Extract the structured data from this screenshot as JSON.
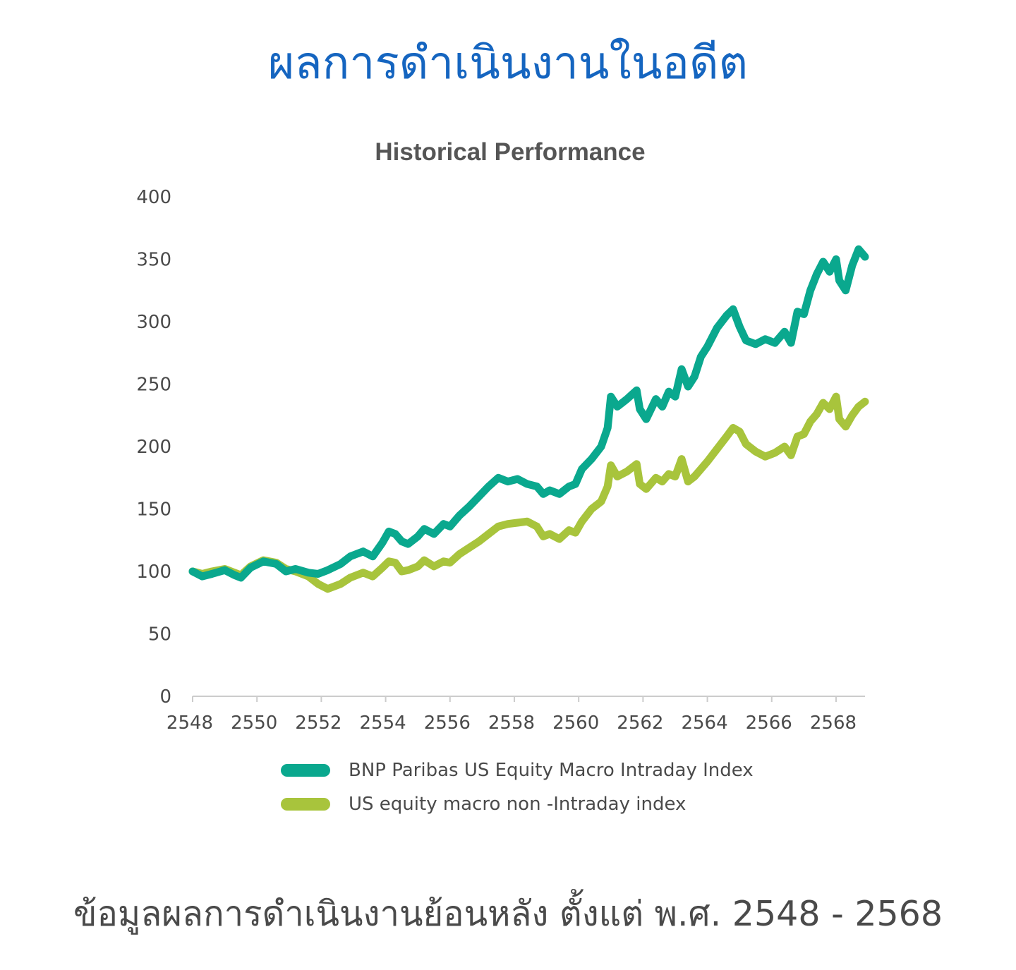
{
  "page": {
    "heading": "ผลการดำเนินงานในอดีต",
    "footer_note": "ข้อมูลผลการดำเนินงานย้อนหลัง ตั้งแต่ พ.ศ. 2548 - 2568"
  },
  "colors": {
    "heading": "#1565c0",
    "intraday_series": "#0aa88e",
    "non_intraday_series": "#a8c43c",
    "axis": "#cccccc",
    "text": "#4a4a4a"
  },
  "chart_data": {
    "type": "line",
    "title": "Historical Performance",
    "xlabel": "",
    "ylabel": "",
    "xlim": [
      2548,
      2568.9
    ],
    "ylim": [
      0,
      400
    ],
    "x_ticks": [
      "2548",
      "2550",
      "2552",
      "2554",
      "2556",
      "2558",
      "2560",
      "2562",
      "2564",
      "2566",
      "2568"
    ],
    "y_ticks": [
      "0",
      "50",
      "100",
      "150",
      "200",
      "250",
      "300",
      "350",
      "400"
    ],
    "grid": false,
    "legend_position": "bottom",
    "series": [
      {
        "name": "BNP Paribas US Equity Macro Intraday Index",
        "color": "#0aa88e",
        "x": [
          2548.0,
          2548.3,
          2548.6,
          2549.0,
          2549.3,
          2549.5,
          2549.8,
          2550.2,
          2550.6,
          2550.9,
          2551.2,
          2551.6,
          2551.9,
          2552.2,
          2552.6,
          2552.9,
          2553.3,
          2553.6,
          2553.9,
          2554.1,
          2554.3,
          2554.5,
          2554.7,
          2555.0,
          2555.2,
          2555.5,
          2555.8,
          2556.0,
          2556.3,
          2556.6,
          2556.9,
          2557.2,
          2557.5,
          2557.8,
          2558.1,
          2558.4,
          2558.7,
          2558.9,
          2559.1,
          2559.4,
          2559.7,
          2559.9,
          2560.1,
          2560.4,
          2560.7,
          2560.9,
          2561.0,
          2561.2,
          2561.5,
          2561.8,
          2561.9,
          2562.1,
          2562.4,
          2562.6,
          2562.8,
          2563.0,
          2563.2,
          2563.4,
          2563.6,
          2563.8,
          2564.0,
          2564.3,
          2564.6,
          2564.8,
          2565.0,
          2565.2,
          2565.5,
          2565.8,
          2566.1,
          2566.4,
          2566.6,
          2566.8,
          2567.0,
          2567.2,
          2567.4,
          2567.6,
          2567.8,
          2568.0,
          2568.1,
          2568.3,
          2568.5,
          2568.7,
          2568.9
        ],
        "values": [
          100,
          96,
          98,
          101,
          97,
          95,
          103,
          108,
          106,
          100,
          102,
          99,
          98,
          101,
          106,
          112,
          116,
          112,
          123,
          132,
          130,
          124,
          122,
          128,
          134,
          130,
          138,
          136,
          145,
          152,
          160,
          168,
          175,
          172,
          174,
          170,
          168,
          162,
          165,
          162,
          168,
          170,
          182,
          190,
          200,
          215,
          240,
          232,
          238,
          245,
          230,
          222,
          238,
          232,
          244,
          240,
          262,
          248,
          256,
          272,
          280,
          295,
          305,
          310,
          296,
          285,
          282,
          286,
          283,
          292,
          283,
          308,
          306,
          325,
          338,
          348,
          340,
          350,
          333,
          325,
          345,
          358,
          352
        ]
      },
      {
        "name": "US equity macro non -Intraday index",
        "color": "#a8c43c",
        "x": [
          2548.0,
          2548.3,
          2548.6,
          2549.0,
          2549.3,
          2549.5,
          2549.8,
          2550.2,
          2550.6,
          2550.9,
          2551.2,
          2551.6,
          2551.9,
          2552.2,
          2552.6,
          2552.9,
          2553.3,
          2553.6,
          2553.9,
          2554.1,
          2554.3,
          2554.5,
          2554.7,
          2555.0,
          2555.2,
          2555.5,
          2555.8,
          2556.0,
          2556.3,
          2556.6,
          2556.9,
          2557.2,
          2557.5,
          2557.8,
          2558.1,
          2558.4,
          2558.7,
          2558.9,
          2559.1,
          2559.4,
          2559.7,
          2559.9,
          2560.1,
          2560.4,
          2560.7,
          2560.9,
          2561.0,
          2561.2,
          2561.5,
          2561.8,
          2561.9,
          2562.1,
          2562.4,
          2562.6,
          2562.8,
          2563.0,
          2563.2,
          2563.4,
          2563.6,
          2563.8,
          2564.0,
          2564.3,
          2564.6,
          2564.8,
          2565.0,
          2565.2,
          2565.5,
          2565.8,
          2566.1,
          2566.4,
          2566.6,
          2566.8,
          2567.0,
          2567.2,
          2567.4,
          2567.6,
          2567.8,
          2568.0,
          2568.1,
          2568.3,
          2568.5,
          2568.7,
          2568.9
        ],
        "values": [
          100,
          98,
          100,
          102,
          99,
          97,
          104,
          109,
          107,
          102,
          100,
          96,
          90,
          86,
          90,
          95,
          99,
          96,
          103,
          108,
          107,
          100,
          101,
          104,
          109,
          104,
          108,
          107,
          114,
          119,
          124,
          130,
          136,
          138,
          139,
          140,
          136,
          128,
          130,
          126,
          133,
          131,
          140,
          150,
          156,
          168,
          185,
          176,
          180,
          186,
          170,
          166,
          175,
          172,
          178,
          176,
          190,
          172,
          176,
          182,
          188,
          198,
          208,
          215,
          212,
          202,
          196,
          192,
          195,
          200,
          193,
          208,
          210,
          220,
          226,
          235,
          230,
          240,
          222,
          216,
          225,
          232,
          236
        ]
      }
    ]
  }
}
